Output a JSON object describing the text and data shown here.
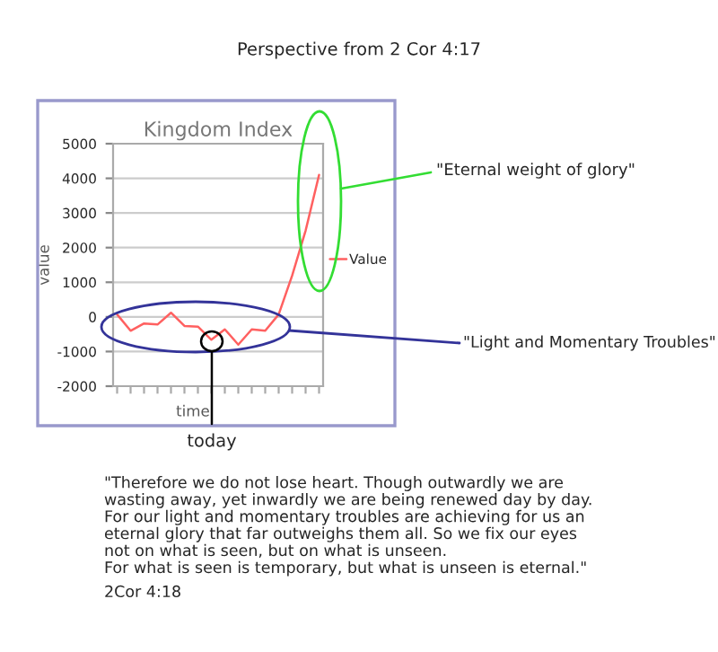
{
  "chart_data": {
    "type": "line",
    "title": "Perspective from 2 Cor 4:17",
    "subtitle": "Kingdom Index",
    "xlabel": "time",
    "ylabel": "value",
    "categories": [
      null,
      null,
      null,
      null,
      null,
      null,
      null,
      null,
      null,
      null,
      null,
      null,
      null,
      null,
      null,
      null
    ],
    "series": [
      {
        "name": "Value",
        "color": "#ff6060",
        "values": [
          70,
          -400,
          -190,
          -220,
          120,
          -260,
          -280,
          -660,
          -360,
          -800,
          -360,
          -400,
          70,
          1190,
          2490,
          4100
        ]
      }
    ],
    "ylim": [
      -2000,
      5000
    ],
    "yticks": [
      -2000,
      -1000,
      0,
      1000,
      2000,
      3000,
      4000,
      5000
    ],
    "grid": "y",
    "legend": "right",
    "marker": "none",
    "line_style": "solid",
    "annotations": [
      "\"Eternal weight of glory\"",
      "\"Light and Momentary Troubles\"",
      "today",
      "\"Therefore we do not lose heart. Though outwardly we are\nwasting away, yet inwardly we are being renewed day by day.\nFor our light and momentary troubles are achieving for us an\neternal glory that far outweighs them all. So we fix our eyes\nnot on what is seen, but on what is unseen.\nFor what is seen is temporary, but what is unseen is eternal.\"",
      "2Cor 4:18"
    ]
  }
}
